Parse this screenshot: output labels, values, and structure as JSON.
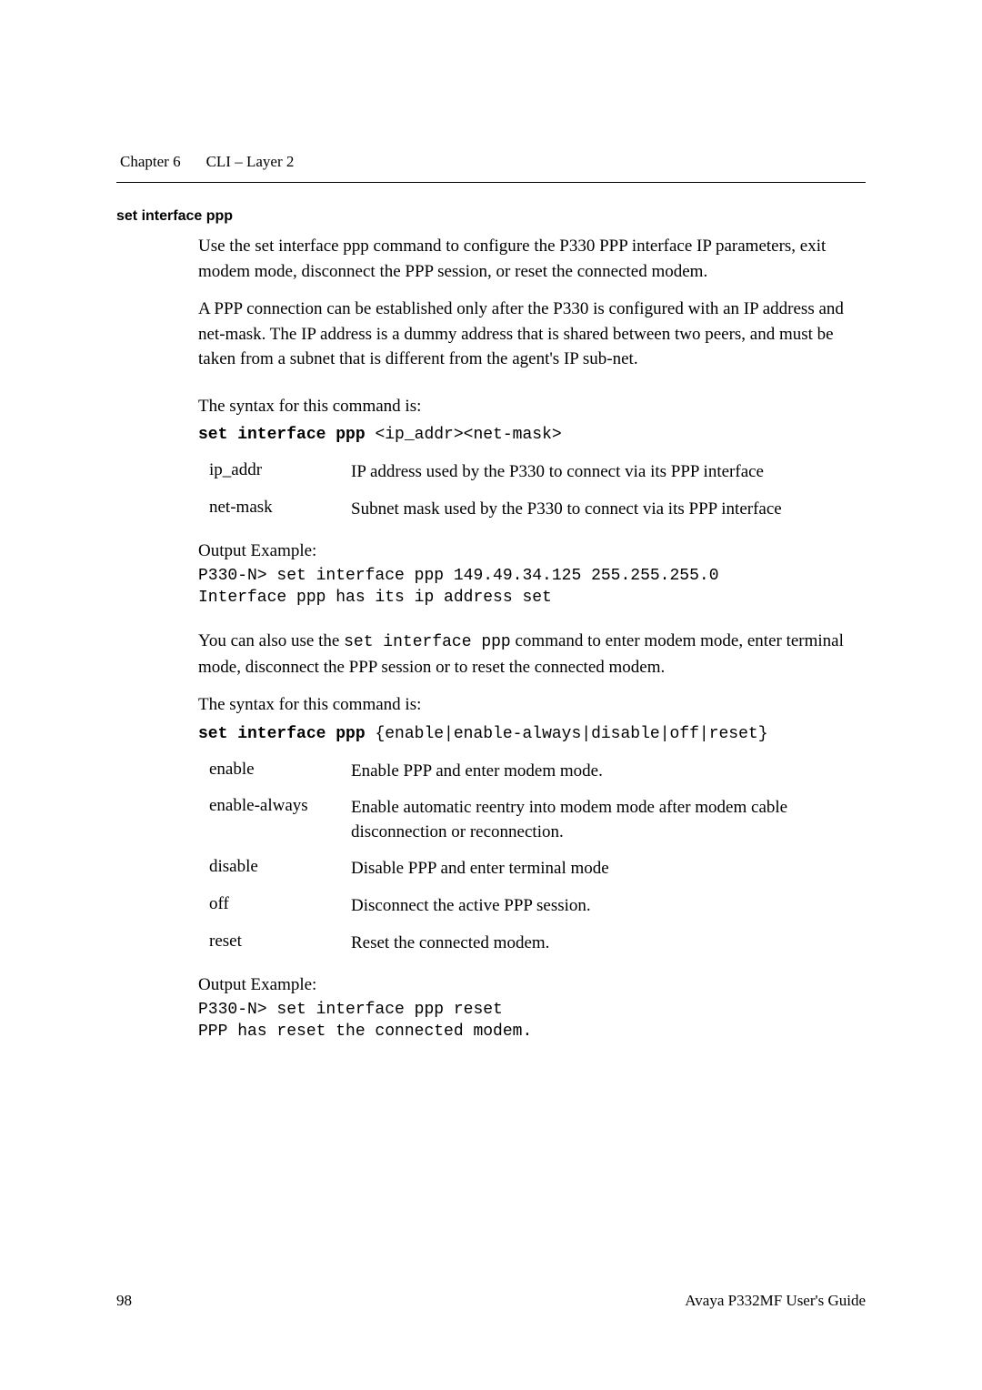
{
  "header": {
    "chapter_label": "Chapter 6",
    "chapter_title": "CLI – Layer 2"
  },
  "section": {
    "title": "set interface ppp",
    "para1": "Use the set interface ppp command to configure the P330 PPP interface IP parameters, exit modem mode, disconnect the PPP session, or reset the connected modem.",
    "para2": "A PPP connection can be established only after the P330 is configured with an IP address and net-mask. The IP address is a dummy address that is shared between two peers, and must be taken from a subnet that is different from the agent's IP sub-net.",
    "syntax_intro": "The syntax for this command is:",
    "syntax_cmd_bold": "set interface ppp ",
    "syntax_cmd_rest": "<ip_addr><net-mask>",
    "params1": [
      {
        "name": "ip_addr",
        "desc": "IP address used by the P330 to connect via its PPP interface"
      },
      {
        "name": "net-mask",
        "desc": "Subnet mask used by the P330 to connect via its PPP interface"
      }
    ],
    "output_label": "Output Example:",
    "output1_line1": "P330-N> set interface ppp 149.49.34.125 255.255.255.0",
    "output1_line2": "Interface ppp has its ip address set",
    "para3_pre": "You can also use the ",
    "para3_code": "set interface ppp",
    "para3_post": " command to enter modem mode, enter terminal mode, disconnect the PPP session or to reset the connected modem.",
    "syntax_intro2": "The syntax for this command is:",
    "syntax2_cmd_bold": "set interface ppp ",
    "syntax2_cmd_rest": "{enable|enable-always|disable|off|reset}",
    "params2": [
      {
        "name": "enable",
        "desc": "Enable PPP and enter modem mode."
      },
      {
        "name": "enable-always",
        "desc": "Enable automatic reentry into modem mode after modem cable disconnection or reconnection."
      },
      {
        "name": "disable",
        "desc": "Disable PPP and enter terminal mode"
      },
      {
        "name": "off",
        "desc": "Disconnect the active PPP session."
      },
      {
        "name": "reset",
        "desc": "Reset the connected modem."
      }
    ],
    "output2_line1": "P330-N> set interface ppp reset",
    "output2_line2": "PPP has reset the connected modem."
  },
  "footer": {
    "page": "98",
    "doc": "Avaya P332MF User's Guide"
  }
}
